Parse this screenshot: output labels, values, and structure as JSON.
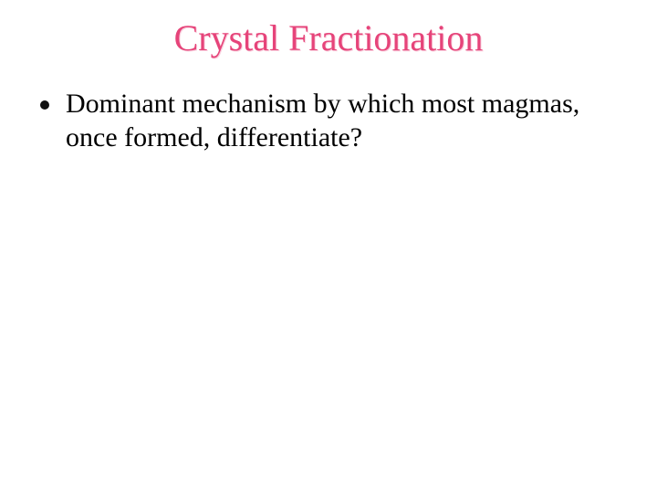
{
  "slide": {
    "background_color": "#ffffff",
    "title": {
      "text": "Crystal Fractionation",
      "color": "#e6457a",
      "font_size_pt": 40,
      "font_family": "Times New Roman",
      "align": "center"
    },
    "bullets": [
      {
        "marker_color": "#111111",
        "marker_shape": "disc",
        "text": "Dominant mechanism by which most magmas, once formed, differentiate?",
        "text_color": "#000000",
        "font_size_pt": 30,
        "font_family": "Times New Roman"
      }
    ]
  }
}
